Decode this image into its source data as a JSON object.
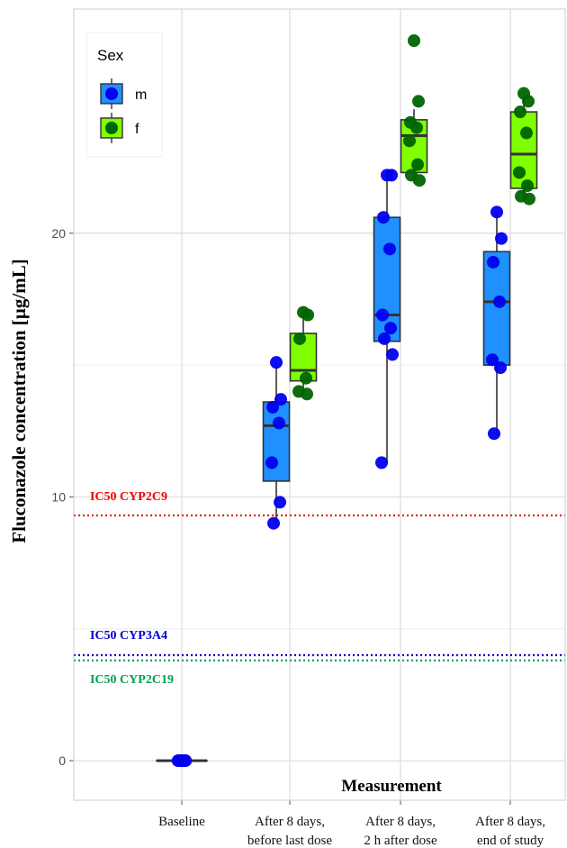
{
  "chart_data": {
    "type": "box",
    "title": "",
    "xlabel": "Measurement",
    "ylabel": "Fluconazole concentration [µg/mL]",
    "ylim": [
      -1.5,
      28.5
    ],
    "yticks": [
      0,
      10,
      20
    ],
    "grid": true,
    "categories": [
      {
        "line1": "Baseline",
        "line2": ""
      },
      {
        "line1": "After 8 days,",
        "line2": "before last dose"
      },
      {
        "line1": "After 8 days,",
        "line2": "2 h after dose"
      },
      {
        "line1": "After 8 days,",
        "line2": "end of study"
      }
    ],
    "legend": {
      "title": "Sex",
      "position": "top-left",
      "entries": [
        {
          "label": "m",
          "color": "#0000ee",
          "fill": "#1e90ff"
        },
        {
          "label": "f",
          "color": "#006400",
          "fill": "#7fff00"
        }
      ]
    },
    "reference_lines": [
      {
        "label": "IC50 CYP2C9",
        "value": 9.3,
        "color": "#ee0000"
      },
      {
        "label": "IC50 CYP3A4",
        "value": 4.0,
        "color": "#0000cc"
      },
      {
        "label": "IC50 CYP2C19",
        "value": 3.8,
        "color": "#00a050"
      }
    ],
    "series": [
      {
        "name": "m",
        "boxes": [
          {
            "category": 0,
            "min": 0,
            "q1": 0,
            "median": 0,
            "q3": 0,
            "max": 0
          },
          {
            "category": 1,
            "min": 9.0,
            "q1": 10.6,
            "median": 12.7,
            "q3": 13.6,
            "max": 15.1
          },
          {
            "category": 2,
            "min": 11.3,
            "q1": 15.9,
            "median": 16.9,
            "q3": 20.6,
            "max": 22.2
          },
          {
            "category": 3,
            "min": 12.4,
            "q1": 15.0,
            "median": 17.4,
            "q3": 19.3,
            "max": 20.8
          }
        ],
        "points": [
          {
            "category": 0,
            "values": [
              0,
              0,
              0,
              0,
              0,
              0,
              0,
              0
            ]
          },
          {
            "category": 1,
            "values": [
              15.1,
              13.7,
              13.4,
              12.8,
              11.3,
              9.8,
              9.0
            ]
          },
          {
            "category": 2,
            "values": [
              22.2,
              22.2,
              20.6,
              19.4,
              16.9,
              16.4,
              16.0,
              15.4,
              11.3
            ]
          },
          {
            "category": 3,
            "values": [
              20.8,
              19.8,
              18.9,
              17.4,
              15.2,
              14.9,
              12.4
            ]
          }
        ]
      },
      {
        "name": "f",
        "boxes": [
          {
            "category": 1,
            "min": 13.9,
            "q1": 14.4,
            "median": 14.8,
            "q3": 16.2,
            "max": 17.0
          },
          {
            "category": 2,
            "min": 21.9,
            "q1": 22.3,
            "median": 23.7,
            "q3": 24.3,
            "max": 24.7
          },
          {
            "category": 3,
            "min": 21.3,
            "q1": 21.7,
            "median": 23.0,
            "q3": 24.6,
            "max": 25.2
          }
        ],
        "points": [
          {
            "category": 1,
            "values": [
              17.0,
              16.9,
              16.0,
              14.5,
              14.0,
              13.9
            ]
          },
          {
            "category": 2,
            "values": [
              27.3,
              25.0,
              24.2,
              24.0,
              23.5,
              22.6,
              22.2,
              22.0
            ]
          },
          {
            "category": 3,
            "values": [
              25.3,
              25.0,
              24.6,
              23.8,
              22.3,
              21.8,
              21.4,
              21.3
            ]
          }
        ]
      }
    ]
  }
}
